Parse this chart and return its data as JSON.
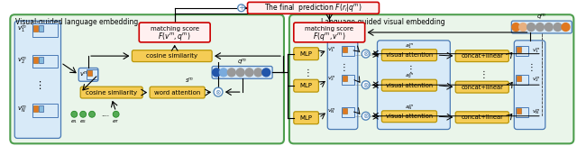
{
  "fig_width": 6.4,
  "fig_height": 1.62,
  "dpi": 100,
  "bg_color": "#ffffff",
  "left_panel_title": "Visual-guided language embedding",
  "right_panel_title": "Language-guided visual embedding",
  "top_box_text": "The final  prediction $F(r_i|q^m)$",
  "left_matching_text1": "matching score",
  "left_matching_text2": "$F(v^m, q^m)$",
  "right_matching_text1": "matching score",
  "right_matching_text2": "$F(q^m, v^m)$",
  "panel_outline_color": "#4e9e4e",
  "red_box_color": "#cc0000",
  "yellow_fill": "#f5cc55",
  "yellow_edge": "#b8960a",
  "blue_fill": "#d8eaf8",
  "blue_edge": "#4a7ab5",
  "green_fill": "#eaf5ea",
  "plus_color": "#5588bb",
  "otimes_color": "#5588bb",
  "arrow_color": "#111111",
  "dot_color_blue1": "#2255aa",
  "dot_color_blue2": "#7aabdd",
  "dot_color_gray": "#999999",
  "dot_color_orange": "#e07820",
  "dot_color_light_orange": "#e8b080",
  "dot_color_green": "#55aa55",
  "img_orange_fill": "#e07820",
  "img_blue_fill": "#3366aa",
  "img_light_blue_fill": "#88bbdd"
}
